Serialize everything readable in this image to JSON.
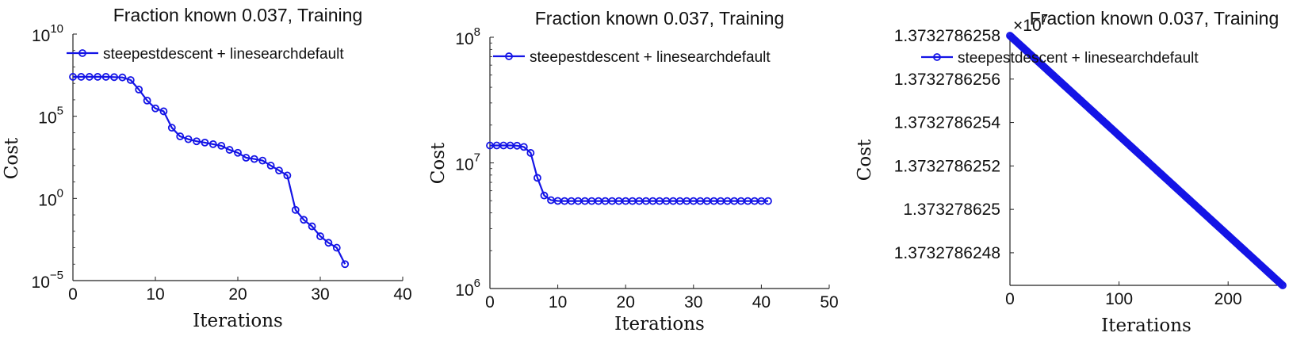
{
  "chart_data": [
    {
      "type": "line",
      "title": "Fraction known 0.037, Training",
      "xlabel": "Iterations",
      "ylabel": "Cost",
      "yscale": "log",
      "xlim": [
        0,
        40
      ],
      "ylim": [
        1e-05,
        10000000000
      ],
      "xticks": [
        "0",
        "10",
        "20",
        "30",
        "40"
      ],
      "yticks": [
        {
          "base": "10",
          "exp": "10",
          "value": 10000000000
        },
        {
          "base": "10",
          "exp": "5",
          "value": 100000
        },
        {
          "base": "10",
          "exp": "0",
          "value": 1
        },
        {
          "base": "10",
          "exp": "−5",
          "value": 1e-05
        }
      ],
      "legend_position": "top-left",
      "color": "#1414e6",
      "series": [
        {
          "name": "steepestdescent + linesearchdefault",
          "x": [
            0,
            1,
            2,
            3,
            4,
            5,
            6,
            7,
            8,
            9,
            10,
            11,
            12,
            13,
            14,
            15,
            16,
            17,
            18,
            19,
            20,
            21,
            22,
            23,
            24,
            25,
            26,
            27,
            28,
            29,
            30,
            31,
            32,
            33
          ],
          "y": [
            25000000,
            25000000,
            25000000,
            25000000,
            25000000,
            24000000,
            23000000,
            16000000,
            4200000,
            900000,
            300000,
            200000,
            20000,
            6000,
            4000,
            3000,
            2500,
            2000,
            1600,
            900,
            600,
            300,
            250,
            200,
            100,
            50,
            25,
            0.2,
            0.05,
            0.02,
            0.005,
            0.002,
            0.001,
            0.0001
          ]
        }
      ]
    },
    {
      "type": "line",
      "title": "Fraction known 0.037, Training",
      "xlabel": "Iterations",
      "ylabel": "Cost",
      "yscale": "log",
      "xlim": [
        0,
        50
      ],
      "ylim": [
        1000000,
        100000000
      ],
      "xticks": [
        "0",
        "10",
        "20",
        "30",
        "40",
        "50"
      ],
      "yticks": [
        {
          "base": "10",
          "exp": "8",
          "value": 100000000
        },
        {
          "base": "10",
          "exp": "7",
          "value": 10000000
        },
        {
          "base": "10",
          "exp": "6",
          "value": 1000000
        }
      ],
      "legend_position": "top-left",
      "color": "#1414e6",
      "series": [
        {
          "name": "steepestdescent + linesearchdefault",
          "x": [
            0,
            1,
            2,
            3,
            4,
            5,
            6,
            7,
            8,
            9,
            10,
            11,
            12,
            13,
            14,
            15,
            16,
            17,
            18,
            19,
            20,
            21,
            22,
            23,
            24,
            25,
            26,
            27,
            28,
            29,
            30,
            31,
            32,
            33,
            34,
            35,
            36,
            37,
            38,
            39,
            40,
            41
          ],
          "y": [
            13750000,
            13760000,
            13760000,
            13760000,
            13700000,
            13400000,
            12000000,
            7600000,
            5500000,
            5050000,
            4980000,
            4970000,
            4970000,
            4970000,
            4970000,
            4970000,
            4970000,
            4970000,
            4970000,
            4970000,
            4970000,
            4970000,
            4970000,
            4970000,
            4970000,
            4970000,
            4970000,
            4970000,
            4970000,
            4970000,
            4970000,
            4970000,
            4970000,
            4970000,
            4970000,
            4970000,
            4970000,
            4970000,
            4970000,
            4970000,
            4970000,
            4970000
          ]
        }
      ]
    },
    {
      "type": "line",
      "title": "Fraction known 0.037, Training",
      "xlabel": "Iterations",
      "ylabel": "Cost",
      "yscale": "linear",
      "xlim": [
        0,
        250
      ],
      "ylim": [
        1.37327862465,
        1.3732786258
      ],
      "xticks": [
        "0",
        "100",
        "200"
      ],
      "yticks": [
        {
          "label": "1.3732786258",
          "value": 1.3732786258
        },
        {
          "label": "1.3732786256",
          "value": 1.3732786256
        },
        {
          "label": "1.3732786254",
          "value": 1.3732786254
        },
        {
          "label": "1.3732786252",
          "value": 1.3732786252
        },
        {
          "label": "1.373278625",
          "value": 1.373278625
        },
        {
          "label": "1.3732786248",
          "value": 1.3732786248
        }
      ],
      "multiplier": {
        "base": "×10",
        "exp": "7"
      },
      "legend_position": "top-left",
      "color": "#1414e6",
      "series": [
        {
          "name": "steepestdescent + linesearchdefault",
          "x_range": [
            0,
            250
          ],
          "y_range": [
            1.3732786258,
            1.37327862465
          ],
          "n_points": 251
        }
      ]
    }
  ]
}
